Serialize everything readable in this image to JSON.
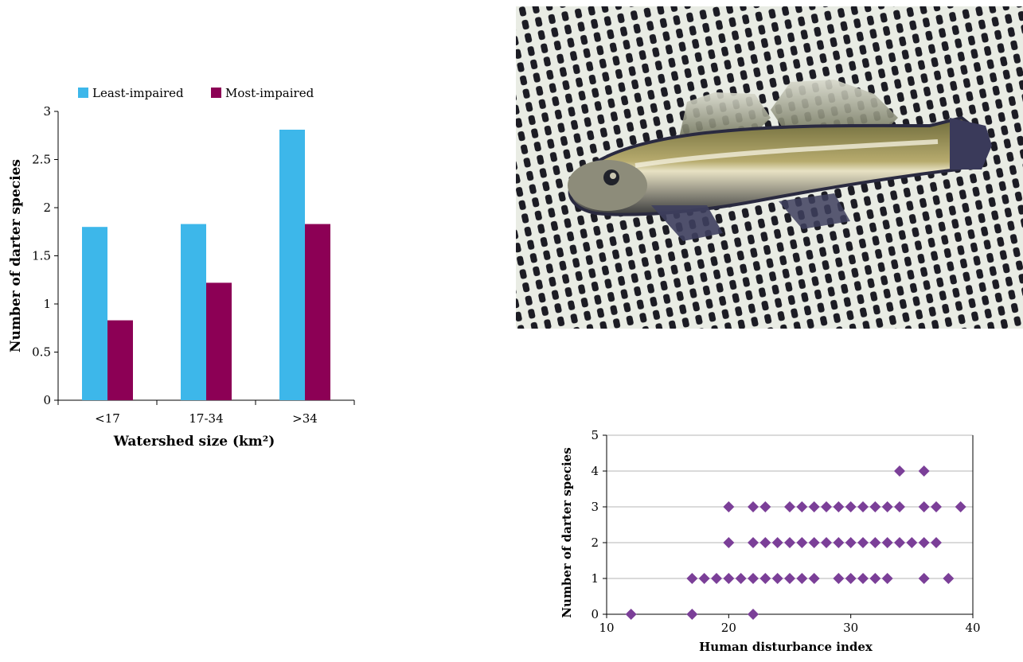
{
  "charts": [
    {
      "type": "bar",
      "categories": [
        "<17",
        "17-34",
        ">34"
      ],
      "series": [
        {
          "name": "Least-impaired",
          "color": "#3db7ea",
          "values": [
            1.8,
            1.83,
            2.81
          ]
        },
        {
          "name": "Most-impaired",
          "color": "#8c0055",
          "values": [
            0.83,
            1.22,
            1.83
          ]
        }
      ],
      "xlabel": "Watershed size (km²)",
      "ylabel": "Number of darter species",
      "ylim": [
        0,
        3
      ],
      "yticks": [
        "0",
        "0.5",
        "1",
        "1.5",
        "2",
        "2.5",
        "3"
      ],
      "ytick_values": [
        0,
        0.5,
        1,
        1.5,
        2,
        2.5,
        3
      ],
      "legend": "top",
      "grid": false
    },
    {
      "type": "scatter",
      "series": [
        {
          "marker": "diamond",
          "color": "#7b3f98",
          "points": [
            [
              12,
              0
            ],
            [
              17,
              0
            ],
            [
              22,
              0
            ],
            [
              17,
              1
            ],
            [
              18,
              1
            ],
            [
              19,
              1
            ],
            [
              20,
              1
            ],
            [
              21,
              1
            ],
            [
              22,
              1
            ],
            [
              23,
              1
            ],
            [
              24,
              1
            ],
            [
              25,
              1
            ],
            [
              26,
              1
            ],
            [
              27,
              1
            ],
            [
              29,
              1
            ],
            [
              30,
              1
            ],
            [
              31,
              1
            ],
            [
              32,
              1
            ],
            [
              33,
              1
            ],
            [
              36,
              1
            ],
            [
              38,
              1
            ],
            [
              20,
              2
            ],
            [
              22,
              2
            ],
            [
              23,
              2
            ],
            [
              24,
              2
            ],
            [
              25,
              2
            ],
            [
              26,
              2
            ],
            [
              27,
              2
            ],
            [
              28,
              2
            ],
            [
              29,
              2
            ],
            [
              30,
              2
            ],
            [
              31,
              2
            ],
            [
              32,
              2
            ],
            [
              33,
              2
            ],
            [
              34,
              2
            ],
            [
              35,
              2
            ],
            [
              36,
              2
            ],
            [
              37,
              2
            ],
            [
              20,
              3
            ],
            [
              22,
              3
            ],
            [
              23,
              3
            ],
            [
              25,
              3
            ],
            [
              26,
              3
            ],
            [
              27,
              3
            ],
            [
              28,
              3
            ],
            [
              29,
              3
            ],
            [
              30,
              3
            ],
            [
              31,
              3
            ],
            [
              32,
              3
            ],
            [
              33,
              3
            ],
            [
              34,
              3
            ],
            [
              36,
              3
            ],
            [
              37,
              3
            ],
            [
              39,
              3
            ],
            [
              34,
              4
            ],
            [
              36,
              4
            ]
          ]
        }
      ],
      "xlabel": "Human disturbance index",
      "ylabel": "Number of darter species",
      "xlim": [
        10,
        40
      ],
      "ylim": [
        0,
        5
      ],
      "xticks": [
        "10",
        "20",
        "30",
        "40"
      ],
      "xtick_values": [
        10,
        20,
        30,
        40
      ],
      "yticks": [
        "0",
        "1",
        "2",
        "3",
        "4",
        "5"
      ],
      "ytick_values": [
        0,
        1,
        2,
        3,
        4,
        5
      ],
      "grid": true
    }
  ],
  "photo": {
    "subject": "darter fish on a mesh net"
  }
}
